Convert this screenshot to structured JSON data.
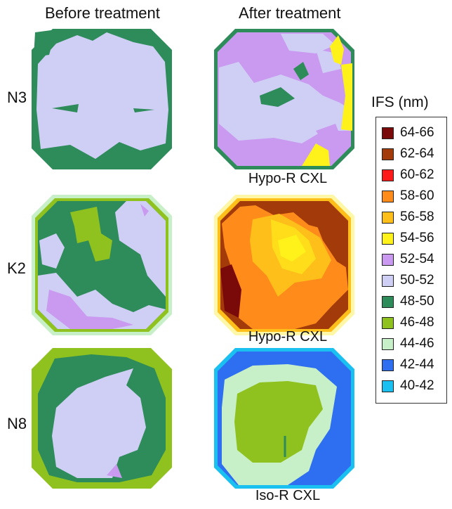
{
  "columns": {
    "before": "Before treatment",
    "after": "After treatment"
  },
  "rows": [
    {
      "id": "N3",
      "label": "N3",
      "treatment": "Hypo-R CXL"
    },
    {
      "id": "K2",
      "label": "K2",
      "treatment": "Hypo-R CXL"
    },
    {
      "id": "N8",
      "label": "N8",
      "treatment": "Iso-R CXL"
    }
  ],
  "legend": {
    "title": "IFS (nm)",
    "items": [
      {
        "label": "64-66",
        "color": "#7a0a0a"
      },
      {
        "label": "62-64",
        "color": "#a33a0a"
      },
      {
        "label": "60-62",
        "color": "#ff1a1a"
      },
      {
        "label": "58-60",
        "color": "#ff8c1a"
      },
      {
        "label": "56-58",
        "color": "#ffbf1a"
      },
      {
        "label": "54-56",
        "color": "#fff21a"
      },
      {
        "label": "52-54",
        "color": "#c99af0"
      },
      {
        "label": "50-52",
        "color": "#cfcff5"
      },
      {
        "label": "48-50",
        "color": "#2e8b5a"
      },
      {
        "label": "46-48",
        "color": "#8fc21f"
      },
      {
        "label": "44-46",
        "color": "#c8f0c8"
      },
      {
        "label": "42-44",
        "color": "#2e6ef0"
      },
      {
        "label": "40-42",
        "color": "#19c0f0"
      }
    ]
  }
}
